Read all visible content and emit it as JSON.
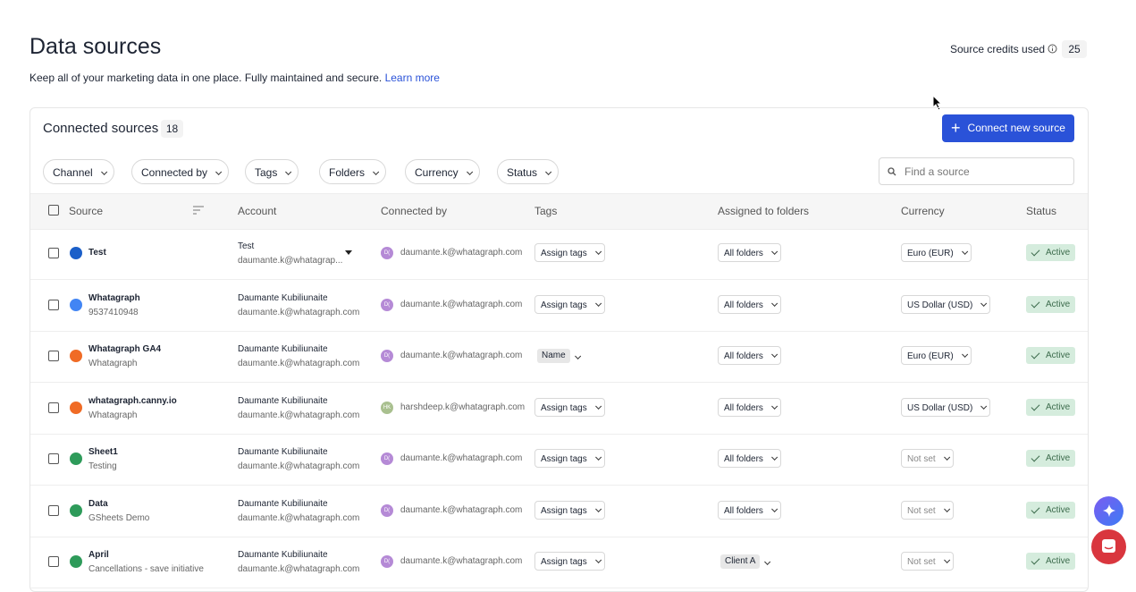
{
  "header": {
    "title": "Data sources",
    "subtitle": "Keep all of your marketing data in one place. Fully maintained and secure.",
    "link": "Learn more",
    "credits_label": "Source credits used",
    "credits_value": 25
  },
  "panel": {
    "title": "Connected sources",
    "count": 18,
    "button": "Connect new source",
    "filters": [
      "Channel",
      "Connected by",
      "Tags",
      "Folders",
      "Currency",
      "Status"
    ],
    "search_placeholder": "Find a source",
    "columns": [
      "Source",
      "Account",
      "Connected by",
      "Tags",
      "Assigned to folders",
      "Currency",
      "Status"
    ],
    "rows": [
      {
        "name": "Test",
        "account_name": "Test",
        "account_email": "daumante.k@whatagrap...",
        "avatar": "D(",
        "connected_by": "daumante.k@whatagraph.com",
        "tags_action": "Assign tags",
        "folders": "All folders",
        "currency": "Euro (EUR)",
        "status": "Active"
      },
      {
        "name": "Whatagraph",
        "sub": "9537410948",
        "account_name": "Daumante Kubiliunaite",
        "account_email": "daumante.k@whatagraph.com",
        "avatar": "D(",
        "connected_by": "daumante.k@whatagraph.com",
        "tags_action": "Assign tags",
        "folders": "All folders",
        "currency": "US Dollar (USD)",
        "status": "Active"
      },
      {
        "name": "Whatagraph GA4",
        "sub": "Whatagraph",
        "account_name": "Daumante Kubiliunaite",
        "account_email": "daumante.k@whatagraph.com",
        "avatar": "D(",
        "connected_by": "daumante.k@whatagraph.com",
        "tag": "Name",
        "folders": "All folders",
        "currency": "Euro (EUR)",
        "status": "Active"
      },
      {
        "name": "whatagraph.canny.io",
        "sub": "Whatagraph",
        "account_name": "Daumante Kubiliunaite",
        "account_email": "daumante.k@whatagraph.com",
        "avatar": "HK",
        "connected_by": "harshdeep.k@whatagraph.com",
        "tags_action": "Assign tags",
        "folders": "All folders",
        "currency": "US Dollar (USD)",
        "status": "Active"
      },
      {
        "name": "Sheet1",
        "sub": "Testing",
        "account_name": "Daumante Kubiliunaite",
        "account_email": "daumante.k@whatagraph.com",
        "avatar": "D(",
        "connected_by": "daumante.k@whatagraph.com",
        "tags_action": "Assign tags",
        "folders": "All folders",
        "currency_placeholder": "Not set",
        "status": "Active"
      },
      {
        "name": "Data",
        "sub": "GSheets Demo",
        "account_name": "Daumante Kubiliunaite",
        "account_email": "daumante.k@whatagraph.com",
        "avatar": "D(",
        "connected_by": "daumante.k@whatagraph.com",
        "tags_action": "Assign tags",
        "folders": "All folders",
        "currency_placeholder": "Not set",
        "status": "Active"
      },
      {
        "name": "April",
        "sub": "Cancellations - save initiative",
        "account_name": "Daumante Kubiliunaite",
        "account_email": "daumante.k@whatagraph.com",
        "avatar": "D(",
        "connected_by": "daumante.k@whatagraph.com",
        "tags_action": "Assign tags",
        "folder": "Client A",
        "currency_placeholder": "Not set",
        "status": "Active"
      }
    ]
  }
}
